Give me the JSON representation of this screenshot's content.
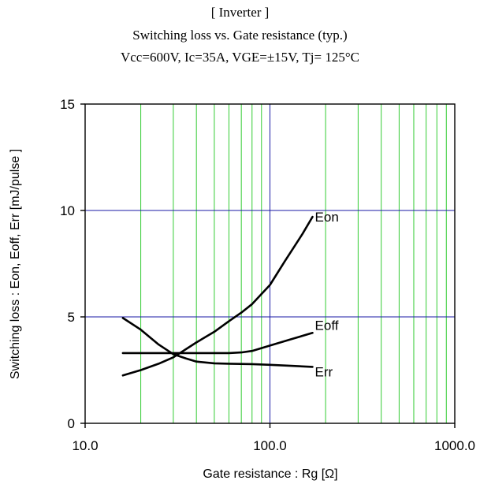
{
  "chart_data": {
    "type": "line",
    "title": "[ Inverter ]",
    "subtitle": "Switching loss  vs.  Gate resistance (typ.)",
    "conditions": "Vcc=600V, Ic=35A, VGE=±15V, Tj= 125°C",
    "xlabel": "Gate resistance : Rg [Ω]",
    "ylabel": "Switching loss  : Eon, Eoff, Err  [mJ/pulse ]",
    "x_scale": "log",
    "xlim": [
      10,
      1000
    ],
    "ylim": [
      0,
      15
    ],
    "x_ticks": [
      10,
      100,
      1000
    ],
    "x_tick_labels": [
      "10.0",
      "100.0",
      "1000.0"
    ],
    "y_ticks": [
      0,
      5,
      10,
      15
    ],
    "y_tick_labels": [
      "0",
      "5",
      "10",
      "15"
    ],
    "grid": true,
    "colors": {
      "major_grid": "#1a1aa6",
      "minor_grid": "#33cc33",
      "curve": "#000000",
      "frame": "#000000"
    },
    "series": [
      {
        "name": "Eon",
        "x": [
          16,
          20,
          25,
          30,
          40,
          50,
          60,
          70,
          80,
          100,
          120,
          150,
          170
        ],
        "y": [
          2.25,
          2.5,
          2.8,
          3.1,
          3.8,
          4.3,
          4.8,
          5.2,
          5.6,
          6.5,
          7.6,
          8.9,
          9.7
        ]
      },
      {
        "name": "Eoff",
        "x": [
          16,
          20,
          30,
          40,
          50,
          60,
          70,
          80,
          100,
          130,
          170
        ],
        "y": [
          3.3,
          3.3,
          3.3,
          3.3,
          3.3,
          3.3,
          3.33,
          3.4,
          3.65,
          3.95,
          4.25
        ]
      },
      {
        "name": "Err",
        "x": [
          16,
          20,
          25,
          30,
          35,
          40,
          50,
          60,
          80,
          100,
          130,
          170
        ],
        "y": [
          4.95,
          4.4,
          3.7,
          3.25,
          3.05,
          2.9,
          2.82,
          2.8,
          2.78,
          2.75,
          2.7,
          2.65
        ]
      }
    ]
  }
}
